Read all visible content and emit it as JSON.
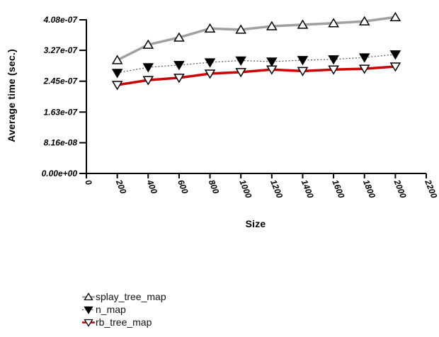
{
  "chart_data": {
    "type": "line",
    "title": "",
    "xlabel": "Size",
    "ylabel": "Average time (sec.)",
    "grid": false,
    "legend_position": "bottom-left",
    "xlim": [
      0,
      2200
    ],
    "ylim": [
      0,
      4.08e-07
    ],
    "x": [
      200,
      400,
      600,
      800,
      1000,
      1200,
      1400,
      1600,
      1800,
      2000
    ],
    "x_ticks": [
      0,
      200,
      400,
      600,
      800,
      1000,
      1200,
      1400,
      1600,
      1800,
      2000,
      2200
    ],
    "y_ticks": [
      {
        "label": "0.00e+00",
        "value": 0
      },
      {
        "label": "8.16e-08",
        "value": 8.16e-08
      },
      {
        "label": "1.63e-07",
        "value": 1.63e-07
      },
      {
        "label": "2.45e-07",
        "value": 2.45e-07
      },
      {
        "label": "3.27e-07",
        "value": 3.27e-07
      },
      {
        "label": "4.08e-07",
        "value": 4.08e-07
      }
    ],
    "series": [
      {
        "name": "splay_tree_map",
        "color": "#a0a0a0",
        "line_width": 3.5,
        "dash": "",
        "marker": "triangle-up",
        "marker_fill": "#ffffff",
        "marker_stroke": "#000000",
        "values": [
          3.01e-07,
          3.42e-07,
          3.61e-07,
          3.85e-07,
          3.82e-07,
          3.91e-07,
          3.95e-07,
          3.99e-07,
          4.04e-07,
          4.15e-07
        ]
      },
      {
        "name": "n_map",
        "color": "#555555",
        "line_width": 1.2,
        "dash": "2 2.5",
        "marker": "triangle-down",
        "marker_fill": "#000000",
        "marker_stroke": "#000000",
        "values": [
          2.67e-07,
          2.82e-07,
          2.88e-07,
          2.95e-07,
          3e-07,
          2.97e-07,
          3.01e-07,
          3.03e-07,
          3.08e-07,
          3.16e-07
        ]
      },
      {
        "name": "rb_tree_map",
        "color": "#cc0000",
        "line_width": 3.5,
        "dash": "",
        "marker": "triangle-down",
        "marker_fill": "#ffffff",
        "marker_stroke": "#000000",
        "values": [
          2.35e-07,
          2.48e-07,
          2.54e-07,
          2.65e-07,
          2.69e-07,
          2.76e-07,
          2.72e-07,
          2.76e-07,
          2.78e-07,
          2.84e-07
        ]
      }
    ],
    "axis_color": "#000000"
  }
}
